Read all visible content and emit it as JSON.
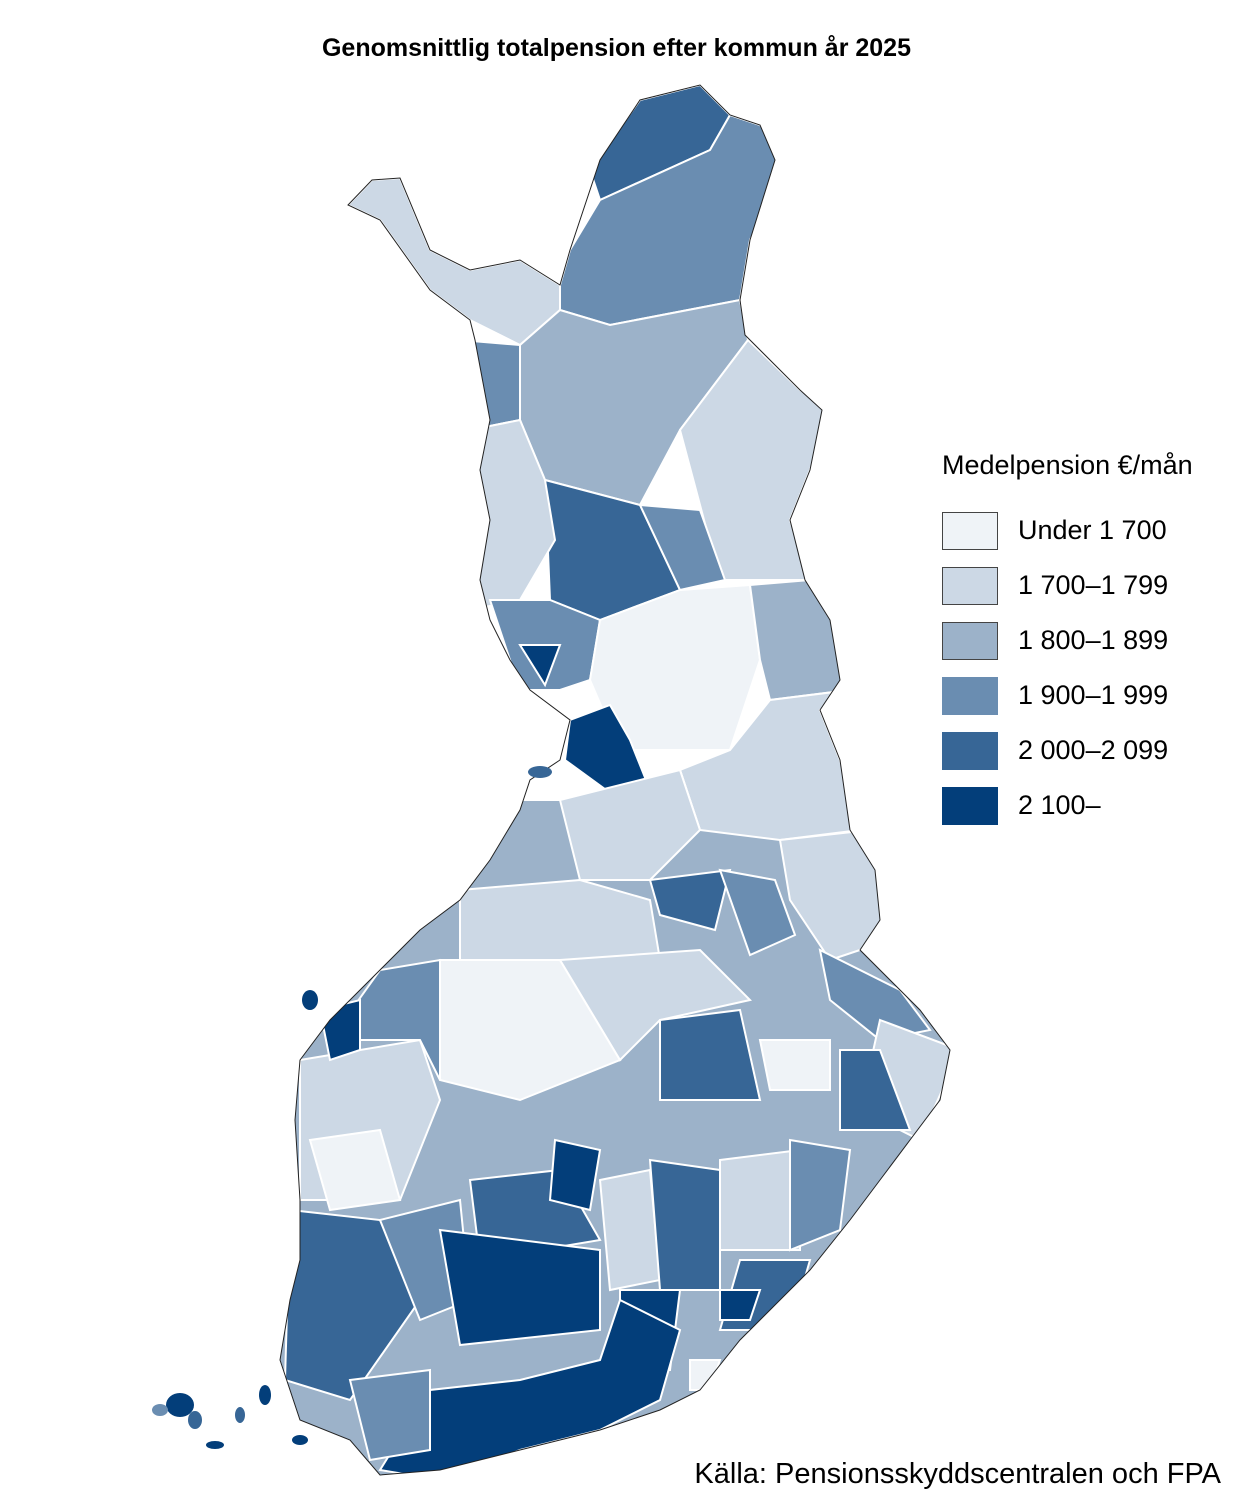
{
  "title": "Genomsnittlig totalpension efter kommun år 2025",
  "legend": {
    "title": "Medelpension €/mån",
    "classes": [
      {
        "label": "Under 1 700",
        "color": "#eff3f7"
      },
      {
        "label": "1 700–1 799",
        "color": "#ccd8e5"
      },
      {
        "label": "1 800–1 899",
        "color": "#9cb2c9"
      },
      {
        "label": "1 900–1 999",
        "color": "#6a8db1"
      },
      {
        "label": "2 000–2 099",
        "color": "#376696"
      },
      {
        "label": "2 100–",
        "color": "#033e7a"
      }
    ]
  },
  "source": "Källa: Pensionsskyddscentralen och FPA"
}
